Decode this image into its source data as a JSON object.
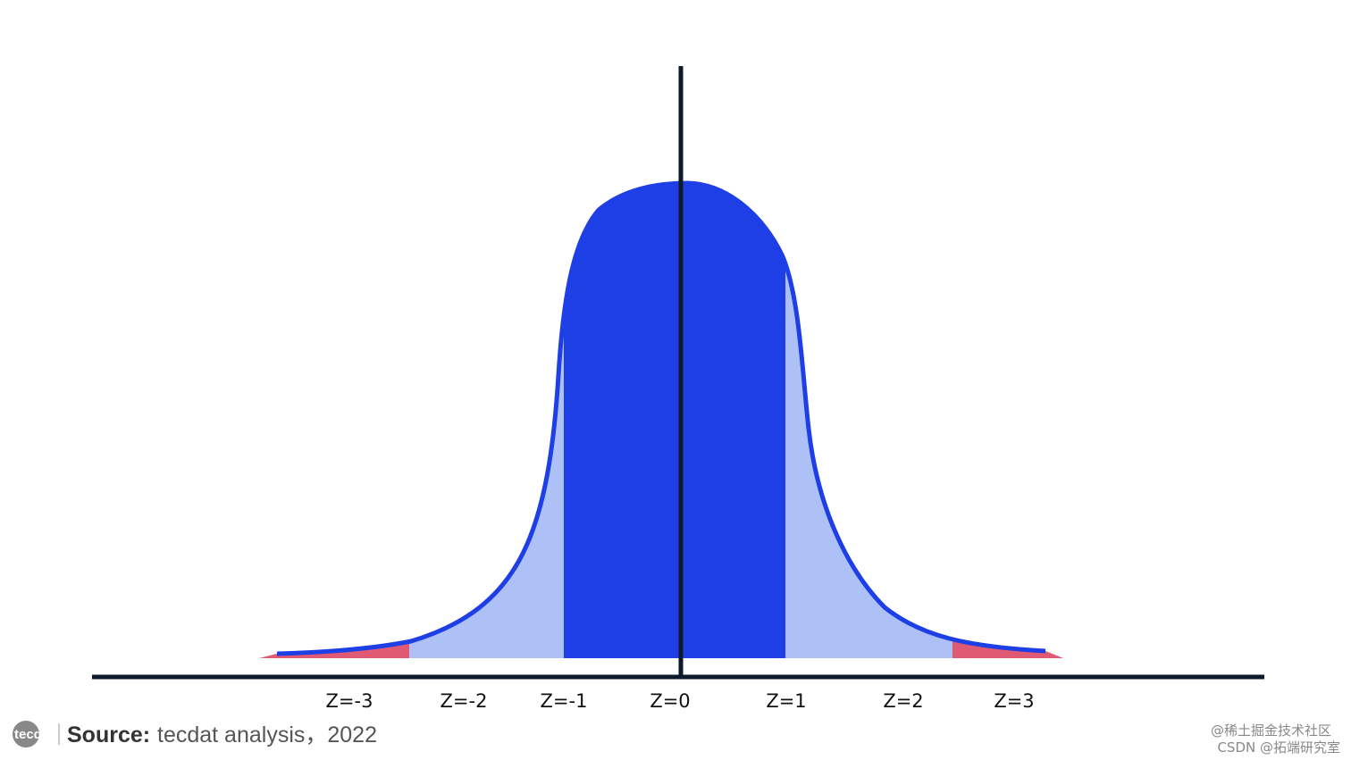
{
  "z_labels": [
    "Z=-3",
    "Z=-2",
    "Z=-1",
    "Z=0",
    "Z=1",
    "Z=2",
    "Z=3"
  ],
  "logo": "tecdat",
  "source": {
    "label": "Source:",
    "text": "tecdat analysis，2022"
  },
  "watermark": [
    "@稀土掘金技术社区",
    "CSDN @拓端研究室"
  ]
}
